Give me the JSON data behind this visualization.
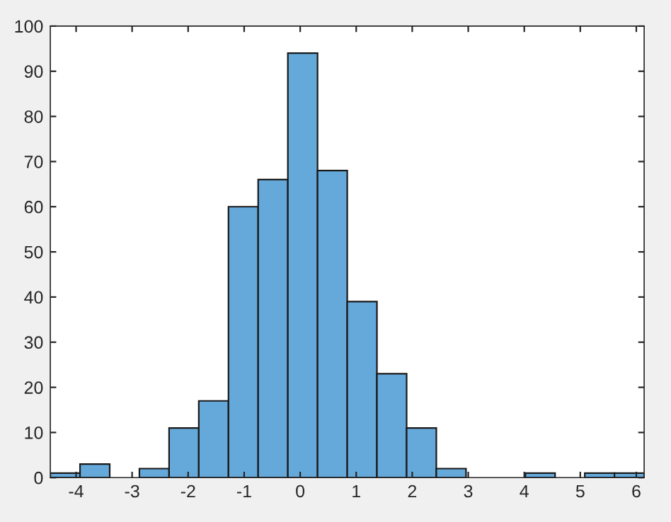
{
  "chart_data": {
    "type": "histogram",
    "bins": [
      -4.46,
      -3.93,
      -3.4,
      -2.87,
      -2.34,
      -1.81,
      -1.28,
      -0.75,
      -0.22,
      0.31,
      0.84,
      1.37,
      1.9,
      2.43,
      2.96,
      3.49,
      4.02,
      4.55,
      5.08,
      5.61,
      6.14
    ],
    "values": [
      1,
      3,
      0,
      2,
      11,
      17,
      60,
      66,
      94,
      68,
      39,
      23,
      11,
      2,
      0,
      0,
      1,
      0,
      1,
      1
    ],
    "color": "#65a9db",
    "xlim": [
      -4.46,
      6.14
    ],
    "xticks": [
      -4,
      -3,
      -2,
      -1,
      0,
      1,
      2,
      3,
      4,
      5,
      6
    ],
    "ylim": [
      0,
      100
    ],
    "yticks": [
      0,
      10,
      20,
      30,
      40,
      50,
      60,
      70,
      80,
      90,
      100
    ],
    "grid": false
  }
}
